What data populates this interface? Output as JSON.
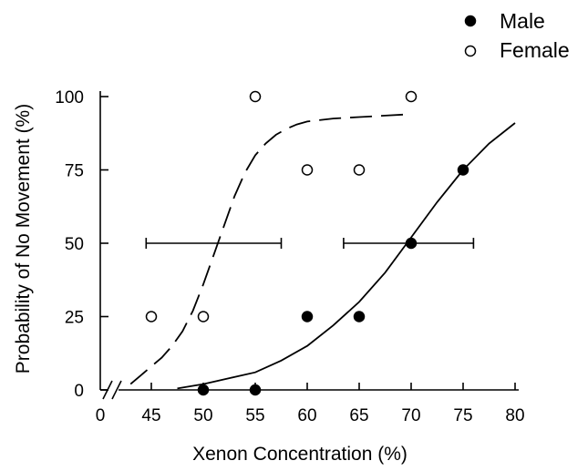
{
  "chart_data": {
    "type": "scatter",
    "xlabel": "Xenon Concentration (%)",
    "ylabel": "Probability of No Movement (%)",
    "x_ticks": [
      "0",
      "45",
      "50",
      "55",
      "60",
      "65",
      "70",
      "75",
      "80"
    ],
    "y_ticks": [
      "0",
      "25",
      "50",
      "75",
      "100"
    ],
    "xlim": [
      45,
      80
    ],
    "ylim": [
      0,
      100
    ],
    "x_axis_break": true,
    "legend_position": "top-right",
    "grid": false,
    "series": [
      {
        "name": "Male",
        "marker": "filled-circle",
        "color": "#000000",
        "points": [
          {
            "x": 50,
            "y": 0
          },
          {
            "x": 55,
            "y": 0
          },
          {
            "x": 60,
            "y": 25
          },
          {
            "x": 65,
            "y": 25
          },
          {
            "x": 70,
            "y": 50
          },
          {
            "x": 75,
            "y": 75
          }
        ],
        "fit_curve": {
          "style": "solid",
          "points": [
            [
              47.5,
              0.5
            ],
            [
              50,
              2
            ],
            [
              52.5,
              4
            ],
            [
              55,
              6
            ],
            [
              57.5,
              10
            ],
            [
              60,
              15
            ],
            [
              62.5,
              22
            ],
            [
              65,
              30
            ],
            [
              67.5,
              40
            ],
            [
              70,
              52
            ],
            [
              72.5,
              64
            ],
            [
              75,
              75
            ],
            [
              77.5,
              84
            ],
            [
              80,
              91
            ]
          ]
        },
        "error_bar": {
          "x": 69.8,
          "y": 50,
          "x_low": 63.5,
          "x_high": 76
        }
      },
      {
        "name": "Female",
        "marker": "open-circle",
        "color": "#000000",
        "points": [
          {
            "x": 45,
            "y": 25
          },
          {
            "x": 50,
            "y": 25
          },
          {
            "x": 55,
            "y": 100
          },
          {
            "x": 60,
            "y": 75
          },
          {
            "x": 65,
            "y": 75
          },
          {
            "x": 70,
            "y": 100
          }
        ],
        "fit_curve": {
          "style": "dashed",
          "points": [
            [
              43,
              2
            ],
            [
              44,
              5
            ],
            [
              45,
              8
            ],
            [
              46,
              11
            ],
            [
              47,
              15
            ],
            [
              48,
              20
            ],
            [
              49,
              27
            ],
            [
              50,
              36
            ],
            [
              51,
              46
            ],
            [
              52,
              56
            ],
            [
              53,
              66
            ],
            [
              54,
              74
            ],
            [
              55,
              80
            ],
            [
              56,
              84
            ],
            [
              57,
              87
            ],
            [
              58,
              89
            ],
            [
              59,
              90.5
            ],
            [
              60,
              91.5
            ],
            [
              62.5,
              92.5
            ],
            [
              65,
              93
            ],
            [
              67.5,
              93.5
            ],
            [
              70,
              94
            ]
          ]
        },
        "error_bar": {
          "x": 51.5,
          "y": 50,
          "x_low": 44.5,
          "x_high": 57.5
        }
      }
    ]
  }
}
